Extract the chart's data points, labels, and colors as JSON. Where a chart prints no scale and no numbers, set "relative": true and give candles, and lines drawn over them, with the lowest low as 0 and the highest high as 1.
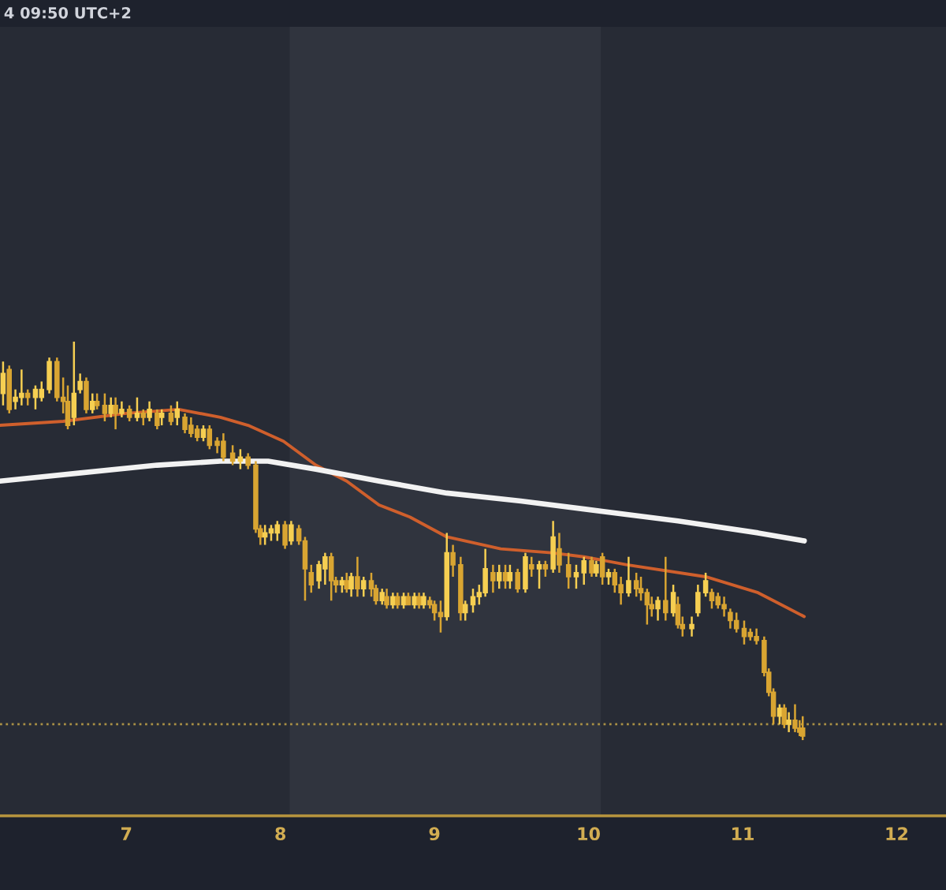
{
  "chart_data": {
    "type": "candlestick",
    "relative": true,
    "annotations": [
      "4 09:50 UTC+2"
    ],
    "xlim": [
      6.18,
      12.32
    ],
    "xticks": [
      7,
      8,
      9,
      10,
      11,
      12
    ],
    "bands": [
      {
        "axis": "x",
        "from": 8.06,
        "to": 10.08,
        "color": "#30343e"
      }
    ],
    "ref_lines": [
      {
        "axis": "y",
        "value": 0.04,
        "color": "#a88f45",
        "line_style": "dotted"
      }
    ],
    "x": [
      6.2,
      6.24,
      6.28,
      6.32,
      6.36,
      6.41,
      6.45,
      6.5,
      6.55,
      6.59,
      6.62,
      6.66,
      6.7,
      6.74,
      6.78,
      6.81,
      6.86,
      6.9,
      6.93,
      6.97,
      7.02,
      7.07,
      7.11,
      7.15,
      7.2,
      7.23,
      7.29,
      7.33,
      7.38,
      7.42,
      7.46,
      7.5,
      7.54,
      7.59,
      7.63,
      7.69,
      7.74,
      7.79,
      7.84,
      7.87,
      7.9,
      7.94,
      7.98,
      8.03,
      8.07,
      8.12,
      8.16,
      8.2,
      8.25,
      8.29,
      8.33,
      8.36,
      8.4,
      8.43,
      8.46,
      8.5,
      8.54,
      8.59,
      8.62,
      8.66,
      8.69,
      8.73,
      8.76,
      8.8,
      8.83,
      8.87,
      8.9,
      8.93,
      8.97,
      9.0,
      9.04,
      9.08,
      9.12,
      9.17,
      9.2,
      9.25,
      9.29,
      9.33,
      9.38,
      9.42,
      9.46,
      9.49,
      9.54,
      9.59,
      9.63,
      9.68,
      9.72,
      9.77,
      9.81,
      9.87,
      9.92,
      9.97,
      10.02,
      10.05,
      10.09,
      10.13,
      10.17,
      10.21,
      10.26,
      10.31,
      10.34,
      10.38,
      10.41,
      10.45,
      10.5,
      10.55,
      10.58,
      10.61,
      10.67,
      10.71,
      10.76,
      10.8,
      10.84,
      10.88,
      10.92,
      10.96,
      11.01,
      11.05,
      11.09,
      11.14,
      11.17,
      11.2,
      11.24,
      11.27,
      11.3,
      11.34,
      11.37,
      11.39
    ],
    "ohlc": [
      [
        0.87,
        0.95,
        0.84,
        0.92
      ],
      [
        0.93,
        0.94,
        0.82,
        0.83
      ],
      [
        0.85,
        0.88,
        0.83,
        0.86
      ],
      [
        0.86,
        0.93,
        0.84,
        0.87
      ],
      [
        0.87,
        0.88,
        0.84,
        0.86
      ],
      [
        0.86,
        0.89,
        0.83,
        0.88
      ],
      [
        0.86,
        0.9,
        0.85,
        0.88
      ],
      [
        0.88,
        0.96,
        0.87,
        0.95
      ],
      [
        0.95,
        0.96,
        0.85,
        0.86
      ],
      [
        0.86,
        0.91,
        0.82,
        0.85
      ],
      [
        0.85,
        0.89,
        0.78,
        0.79
      ],
      [
        0.81,
        1.0,
        0.79,
        0.87
      ],
      [
        0.88,
        0.92,
        0.87,
        0.9
      ],
      [
        0.9,
        0.91,
        0.82,
        0.83
      ],
      [
        0.83,
        0.87,
        0.82,
        0.85
      ],
      [
        0.85,
        0.87,
        0.83,
        0.84
      ],
      [
        0.84,
        0.87,
        0.8,
        0.82
      ],
      [
        0.82,
        0.86,
        0.81,
        0.84
      ],
      [
        0.84,
        0.86,
        0.78,
        0.82
      ],
      [
        0.82,
        0.85,
        0.81,
        0.83
      ],
      [
        0.83,
        0.84,
        0.8,
        0.81
      ],
      [
        0.81,
        0.86,
        0.8,
        0.82
      ],
      [
        0.82,
        0.83,
        0.79,
        0.81
      ],
      [
        0.81,
        0.85,
        0.8,
        0.83
      ],
      [
        0.82,
        0.83,
        0.78,
        0.79
      ],
      [
        0.81,
        0.83,
        0.79,
        0.82
      ],
      [
        0.82,
        0.84,
        0.79,
        0.8
      ],
      [
        0.81,
        0.85,
        0.79,
        0.83
      ],
      [
        0.81,
        0.82,
        0.77,
        0.78
      ],
      [
        0.79,
        0.81,
        0.76,
        0.77
      ],
      [
        0.78,
        0.79,
        0.75,
        0.76
      ],
      [
        0.76,
        0.79,
        0.75,
        0.78
      ],
      [
        0.78,
        0.79,
        0.73,
        0.74
      ],
      [
        0.75,
        0.76,
        0.72,
        0.74
      ],
      [
        0.75,
        0.77,
        0.7,
        0.71
      ],
      [
        0.72,
        0.74,
        0.69,
        0.7
      ],
      [
        0.7,
        0.73,
        0.68,
        0.71
      ],
      [
        0.71,
        0.72,
        0.68,
        0.69
      ],
      [
        0.69,
        0.7,
        0.52,
        0.53
      ],
      [
        0.53,
        0.54,
        0.49,
        0.51
      ],
      [
        0.51,
        0.54,
        0.49,
        0.52
      ],
      [
        0.52,
        0.54,
        0.5,
        0.53
      ],
      [
        0.52,
        0.55,
        0.5,
        0.54
      ],
      [
        0.54,
        0.55,
        0.48,
        0.49
      ],
      [
        0.5,
        0.55,
        0.49,
        0.54
      ],
      [
        0.53,
        0.54,
        0.49,
        0.5
      ],
      [
        0.5,
        0.51,
        0.35,
        0.43
      ],
      [
        0.42,
        0.44,
        0.37,
        0.39
      ],
      [
        0.4,
        0.45,
        0.38,
        0.44
      ],
      [
        0.43,
        0.47,
        0.39,
        0.46
      ],
      [
        0.46,
        0.47,
        0.35,
        0.4
      ],
      [
        0.4,
        0.41,
        0.37,
        0.39
      ],
      [
        0.39,
        0.41,
        0.37,
        0.4
      ],
      [
        0.4,
        0.42,
        0.37,
        0.38
      ],
      [
        0.38,
        0.42,
        0.36,
        0.41
      ],
      [
        0.41,
        0.46,
        0.36,
        0.38
      ],
      [
        0.38,
        0.41,
        0.36,
        0.4
      ],
      [
        0.4,
        0.42,
        0.36,
        0.38
      ],
      [
        0.38,
        0.39,
        0.34,
        0.35
      ],
      [
        0.35,
        0.38,
        0.34,
        0.37
      ],
      [
        0.36,
        0.38,
        0.33,
        0.34
      ],
      [
        0.34,
        0.37,
        0.33,
        0.36
      ],
      [
        0.36,
        0.37,
        0.33,
        0.34
      ],
      [
        0.34,
        0.37,
        0.33,
        0.36
      ],
      [
        0.36,
        0.37,
        0.34,
        0.34
      ],
      [
        0.34,
        0.37,
        0.33,
        0.36
      ],
      [
        0.36,
        0.37,
        0.33,
        0.34
      ],
      [
        0.34,
        0.37,
        0.33,
        0.36
      ],
      [
        0.35,
        0.36,
        0.33,
        0.34
      ],
      [
        0.34,
        0.35,
        0.3,
        0.32
      ],
      [
        0.32,
        0.35,
        0.27,
        0.31
      ],
      [
        0.31,
        0.52,
        0.3,
        0.47
      ],
      [
        0.47,
        0.49,
        0.41,
        0.44
      ],
      [
        0.44,
        0.46,
        0.3,
        0.32
      ],
      [
        0.32,
        0.35,
        0.3,
        0.34
      ],
      [
        0.34,
        0.38,
        0.32,
        0.36
      ],
      [
        0.36,
        0.39,
        0.34,
        0.37
      ],
      [
        0.37,
        0.48,
        0.36,
        0.43
      ],
      [
        0.42,
        0.44,
        0.37,
        0.4
      ],
      [
        0.4,
        0.44,
        0.38,
        0.42
      ],
      [
        0.42,
        0.44,
        0.38,
        0.4
      ],
      [
        0.4,
        0.44,
        0.38,
        0.42
      ],
      [
        0.42,
        0.43,
        0.37,
        0.38
      ],
      [
        0.38,
        0.47,
        0.37,
        0.46
      ],
      [
        0.44,
        0.46,
        0.41,
        0.43
      ],
      [
        0.43,
        0.45,
        0.38,
        0.44
      ],
      [
        0.44,
        0.45,
        0.41,
        0.43
      ],
      [
        0.43,
        0.55,
        0.42,
        0.51
      ],
      [
        0.48,
        0.52,
        0.42,
        0.44
      ],
      [
        0.44,
        0.47,
        0.38,
        0.41
      ],
      [
        0.41,
        0.44,
        0.38,
        0.42
      ],
      [
        0.42,
        0.46,
        0.39,
        0.45
      ],
      [
        0.45,
        0.46,
        0.41,
        0.42
      ],
      [
        0.42,
        0.45,
        0.41,
        0.44
      ],
      [
        0.46,
        0.47,
        0.39,
        0.41
      ],
      [
        0.41,
        0.43,
        0.39,
        0.42
      ],
      [
        0.42,
        0.43,
        0.37,
        0.39
      ],
      [
        0.39,
        0.41,
        0.34,
        0.37
      ],
      [
        0.37,
        0.46,
        0.36,
        0.4
      ],
      [
        0.4,
        0.42,
        0.36,
        0.38
      ],
      [
        0.38,
        0.41,
        0.35,
        0.37
      ],
      [
        0.37,
        0.38,
        0.29,
        0.34
      ],
      [
        0.34,
        0.36,
        0.31,
        0.33
      ],
      [
        0.33,
        0.36,
        0.3,
        0.35
      ],
      [
        0.35,
        0.46,
        0.3,
        0.32
      ],
      [
        0.32,
        0.39,
        0.31,
        0.37
      ],
      [
        0.34,
        0.36,
        0.28,
        0.29
      ],
      [
        0.29,
        0.31,
        0.26,
        0.28
      ],
      [
        0.28,
        0.31,
        0.26,
        0.29
      ],
      [
        0.32,
        0.39,
        0.31,
        0.37
      ],
      [
        0.37,
        0.42,
        0.36,
        0.4
      ],
      [
        0.37,
        0.38,
        0.33,
        0.35
      ],
      [
        0.36,
        0.37,
        0.33,
        0.34
      ],
      [
        0.34,
        0.36,
        0.31,
        0.33
      ],
      [
        0.32,
        0.33,
        0.28,
        0.3
      ],
      [
        0.3,
        0.32,
        0.27,
        0.28
      ],
      [
        0.28,
        0.3,
        0.24,
        0.26
      ],
      [
        0.27,
        0.28,
        0.25,
        0.26
      ],
      [
        0.26,
        0.28,
        0.24,
        0.25
      ],
      [
        0.25,
        0.26,
        0.16,
        0.17
      ],
      [
        0.17,
        0.18,
        0.11,
        0.12
      ],
      [
        0.12,
        0.13,
        0.04,
        0.06
      ],
      [
        0.06,
        0.09,
        0.04,
        0.08
      ],
      [
        0.08,
        0.09,
        0.03,
        0.04
      ],
      [
        0.04,
        0.07,
        0.02,
        0.05
      ],
      [
        0.05,
        0.09,
        0.02,
        0.03
      ],
      [
        0.03,
        0.05,
        0.01,
        0.02
      ],
      [
        0.03,
        0.06,
        0.0,
        0.01
      ]
    ],
    "colors": [
      "#f6cf52",
      "#d9a532",
      "#f6cf52",
      "#f6cf52",
      "#d9a532",
      "#f6cf52",
      "#f6cf52",
      "#f6cf52",
      "#d9a532",
      "#d9a532",
      "#d9a532",
      "#f6cf52",
      "#f6cf52",
      "#d9a532",
      "#f6cf52",
      "#d9a532",
      "#d9a532",
      "#f6cf52",
      "#d9a532",
      "#f6cf52",
      "#d9a532",
      "#f6cf52",
      "#d9a532",
      "#f6cf52",
      "#d9a532",
      "#f6cf52",
      "#d9a532",
      "#f6cf52",
      "#d9a532",
      "#d9a532",
      "#d9a532",
      "#f6cf52",
      "#d9a532",
      "#d9a532",
      "#d9a532",
      "#d9a532",
      "#f6cf52",
      "#d9a532",
      "#d9a532",
      "#d9a532",
      "#f6cf52",
      "#f6cf52",
      "#f6cf52",
      "#d9a532",
      "#f6cf52",
      "#d9a532",
      "#d9a532",
      "#d9a532",
      "#f6cf52",
      "#f6cf52",
      "#d9a532",
      "#d9a532",
      "#f6cf52",
      "#d9a532",
      "#f6cf52",
      "#d9a532",
      "#f6cf52",
      "#d9a532",
      "#d9a532",
      "#f6cf52",
      "#d9a532",
      "#f6cf52",
      "#d9a532",
      "#f6cf52",
      "#d9a532",
      "#f6cf52",
      "#d9a532",
      "#f6cf52",
      "#d9a532",
      "#d9a532",
      "#d9a532",
      "#f6cf52",
      "#d9a532",
      "#d9a532",
      "#f6cf52",
      "#f6cf52",
      "#f6cf52",
      "#f6cf52",
      "#d9a532",
      "#f6cf52",
      "#d9a532",
      "#f6cf52",
      "#d9a532",
      "#f6cf52",
      "#d9a532",
      "#f6cf52",
      "#d9a532",
      "#f6cf52",
      "#d9a532",
      "#d9a532",
      "#f6cf52",
      "#f6cf52",
      "#d9a532",
      "#f6cf52",
      "#d9a532",
      "#f6cf52",
      "#d9a532",
      "#d9a532",
      "#f6cf52",
      "#d9a532",
      "#d9a532",
      "#d9a532",
      "#d9a532",
      "#f6cf52",
      "#d9a532",
      "#f6cf52",
      "#d9a532",
      "#d9a532",
      "#f6cf52",
      "#f6cf52",
      "#f6cf52",
      "#d9a532",
      "#d9a532",
      "#d9a532",
      "#d9a532",
      "#d9a532",
      "#d9a532",
      "#d9a532",
      "#d9a532",
      "#d9a532",
      "#d9a532",
      "#d9a532",
      "#f6cf52",
      "#d9a532",
      "#f6cf52",
      "#d9a532",
      "#d9a532",
      "#d9a532"
    ],
    "series": [
      {
        "type": "line",
        "color": "#cf5f2c",
        "x": [
          6.18,
          6.59,
          7.0,
          7.34,
          7.61,
          7.79,
          8.02,
          8.23,
          8.43,
          8.64,
          8.84,
          9.08,
          9.43,
          9.76,
          9.97,
          10.25,
          10.76,
          11.1,
          11.4
        ],
        "values": [
          0.79,
          0.8,
          0.82,
          0.83,
          0.81,
          0.79,
          0.75,
          0.69,
          0.65,
          0.59,
          0.56,
          0.51,
          0.48,
          0.47,
          0.46,
          0.44,
          0.41,
          0.37,
          0.31
        ]
      },
      {
        "type": "line",
        "color": "#f2f2f2",
        "x": [
          6.18,
          6.69,
          7.2,
          7.61,
          7.92,
          8.23,
          8.64,
          9.08,
          9.56,
          9.97,
          10.58,
          11.1,
          11.4
        ],
        "values": [
          0.65,
          0.67,
          0.69,
          0.7,
          0.7,
          0.68,
          0.65,
          0.62,
          0.6,
          0.58,
          0.55,
          0.52,
          0.5
        ]
      }
    ]
  }
}
